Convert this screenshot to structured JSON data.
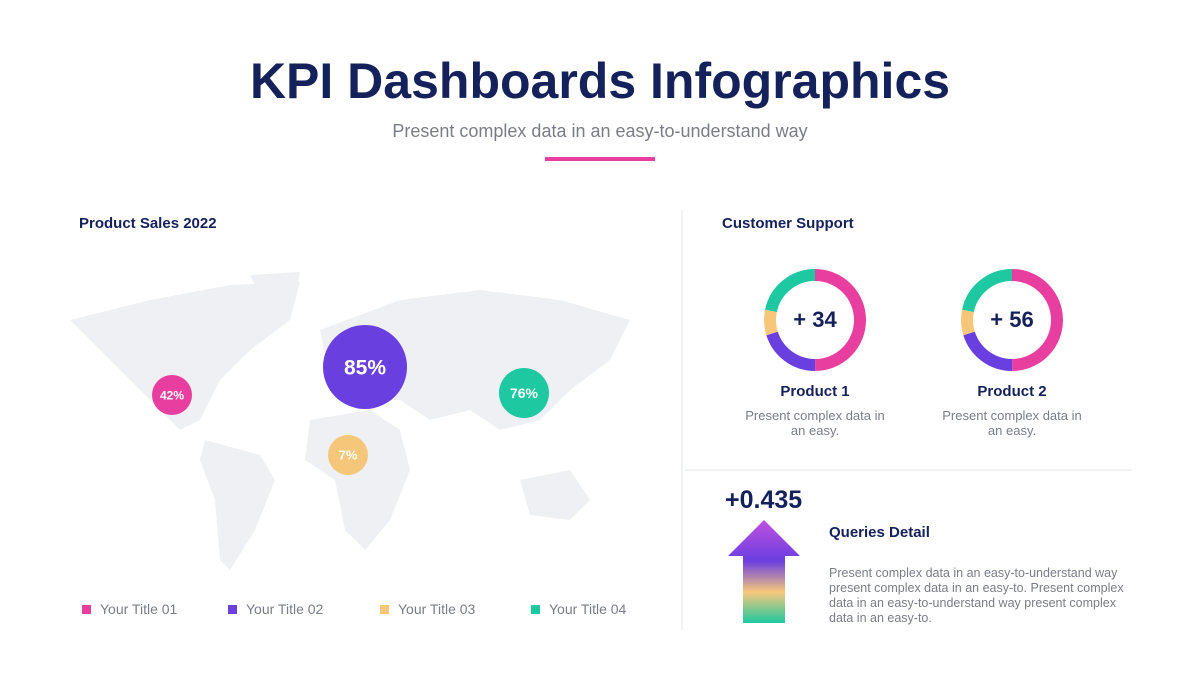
{
  "header": {
    "title": "KPI Dashboards Infographics",
    "subtitle": "Present complex data in an easy-to-understand way"
  },
  "sales": {
    "title": "Product Sales 2022",
    "bubbles": [
      {
        "label": "42%",
        "color": "#e83e9f"
      },
      {
        "label": "85%",
        "color": "#6a3fe0"
      },
      {
        "label": "7%",
        "color": "#f6c77a"
      },
      {
        "label": "76%",
        "color": "#1ec8a0"
      }
    ],
    "legend": [
      {
        "label": "Your Title 01",
        "color": "#e83e9f"
      },
      {
        "label": "Your Title 02",
        "color": "#6a3fe0"
      },
      {
        "label": "Your Title 03",
        "color": "#f6c77a"
      },
      {
        "label": "Your Title 04",
        "color": "#1ec8a0"
      }
    ]
  },
  "support": {
    "title": "Customer Support",
    "products": [
      {
        "value": "+ 34",
        "name": "Product 1",
        "text": "Present complex data in an easy."
      },
      {
        "value": "+ 56",
        "name": "Product 2",
        "text": "Present complex data in an easy."
      }
    ]
  },
  "queries": {
    "value": "+0.435",
    "title": "Queries Detail",
    "text": "Present complex data in an easy-to-understand way present complex data in an easy-to. Present complex data in an easy-to-understand way present complex data in an easy-to."
  }
}
